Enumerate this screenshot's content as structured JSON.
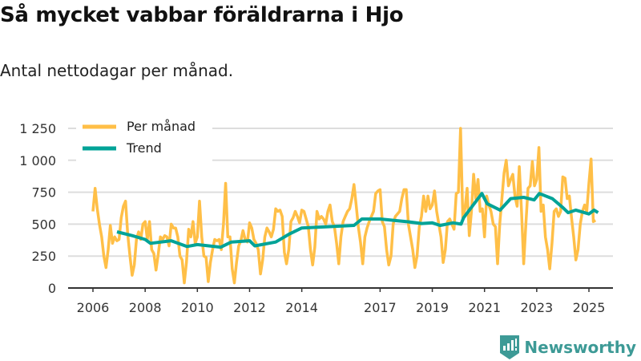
{
  "title": "Så mycket vabbar föräldrarna i Hjo",
  "subtitle": "Antal nettodagar per månad.",
  "brand": "Newsworthy",
  "colors": {
    "monthly": "#ffbf47",
    "trend": "#00a397",
    "grid": "#dddddd",
    "brand": "#3d9a96"
  },
  "chart_data": {
    "type": "line",
    "title": "Så mycket vabbar föräldrarna i Hjo",
    "ylabel": "Antal nettodagar",
    "ylim": [
      0,
      1250
    ],
    "yticks": [
      0,
      250,
      500,
      750,
      1000,
      1250
    ],
    "ytick_labels": [
      "0",
      "250",
      "500",
      "750",
      "1 000",
      "1 250"
    ],
    "xlim": [
      2005.4,
      2026.3
    ],
    "xticks": [
      2006,
      2008,
      2010,
      2012,
      2014,
      2017,
      2019,
      2021,
      2023,
      2025
    ],
    "xtick_labels": [
      "2006",
      "2008",
      "2010",
      "2012",
      "2014",
      "2017",
      "2019",
      "2021",
      "2023",
      "2025"
    ],
    "grid": true,
    "legend_placement": "top-left",
    "series": [
      {
        "name": "Per månad",
        "start": "2006-01",
        "frequency": "monthly",
        "values": [
          600,
          780,
          620,
          500,
          400,
          250,
          160,
          300,
          490,
          350,
          400,
          370,
          380,
          550,
          640,
          680,
          420,
          250,
          100,
          180,
          380,
          440,
          380,
          500,
          520,
          380,
          520,
          300,
          270,
          140,
          260,
          400,
          380,
          410,
          400,
          330,
          500,
          470,
          470,
          400,
          250,
          220,
          40,
          200,
          460,
          400,
          520,
          350,
          400,
          680,
          400,
          250,
          240,
          50,
          200,
          300,
          380,
          370,
          380,
          300,
          500,
          820,
          400,
          400,
          150,
          40,
          200,
          330,
          370,
          450,
          380,
          360,
          510,
          470,
          380,
          350,
          300,
          110,
          220,
          400,
          470,
          440,
          400,
          460,
          620,
          600,
          610,
          560,
          280,
          190,
          300,
          520,
          550,
          600,
          560,
          510,
          610,
          600,
          540,
          480,
          300,
          180,
          320,
          600,
          540,
          560,
          540,
          500,
          600,
          650,
          520,
          480,
          350,
          190,
          400,
          520,
          560,
          600,
          620,
          700,
          810,
          650,
          480,
          360,
          190,
          400,
          470,
          520,
          560,
          600,
          740,
          760,
          770,
          520,
          480,
          300,
          180,
          250,
          500,
          560,
          580,
          600,
          700,
          770,
          770,
          500,
          400,
          300,
          160,
          250,
          480,
          560,
          720,
          600,
          720,
          620,
          650,
          760,
          600,
          500,
          400,
          200,
          300,
          520,
          540,
          500,
          460,
          740,
          750,
          1250,
          550,
          620,
          780,
          410,
          600,
          890,
          700,
          850,
          600,
          620,
          400,
          720,
          650,
          600,
          500,
          480,
          190,
          500,
          700,
          900,
          1000,
          800,
          850,
          890,
          720,
          640,
          950,
          600,
          190,
          500,
          780,
          800,
          990,
          800,
          850,
          1100,
          600,
          650,
          400,
          300,
          150,
          350,
          600,
          620,
          560,
          600,
          870,
          860,
          700,
          720,
          550,
          400,
          220,
          300,
          500,
          600,
          650,
          600,
          820,
          1010,
          520,
          530
        ]
      },
      {
        "name": "Trend",
        "points": [
          [
            2006.92,
            440
          ],
          [
            2007.5,
            410
          ],
          [
            2008.0,
            380
          ],
          [
            2008.2,
            350
          ],
          [
            2009.0,
            370
          ],
          [
            2009.6,
            325
          ],
          [
            2010.0,
            340
          ],
          [
            2010.9,
            320
          ],
          [
            2011.3,
            360
          ],
          [
            2012.0,
            370
          ],
          [
            2012.2,
            330
          ],
          [
            2013.0,
            360
          ],
          [
            2013.5,
            420
          ],
          [
            2014.0,
            470
          ],
          [
            2015.0,
            480
          ],
          [
            2016.0,
            490
          ],
          [
            2016.3,
            540
          ],
          [
            2017.0,
            540
          ],
          [
            2018.0,
            520
          ],
          [
            2018.6,
            505
          ],
          [
            2019.0,
            510
          ],
          [
            2019.3,
            490
          ],
          [
            2019.8,
            510
          ],
          [
            2020.1,
            500
          ],
          [
            2020.2,
            550
          ],
          [
            2020.9,
            740
          ],
          [
            2021.1,
            660
          ],
          [
            2021.6,
            610
          ],
          [
            2022.0,
            700
          ],
          [
            2022.5,
            710
          ],
          [
            2022.9,
            690
          ],
          [
            2023.1,
            740
          ],
          [
            2023.6,
            700
          ],
          [
            2024.0,
            630
          ],
          [
            2024.2,
            590
          ],
          [
            2024.5,
            610
          ],
          [
            2025.0,
            580
          ],
          [
            2025.2,
            610
          ],
          [
            2025.35,
            590
          ]
        ]
      }
    ]
  }
}
